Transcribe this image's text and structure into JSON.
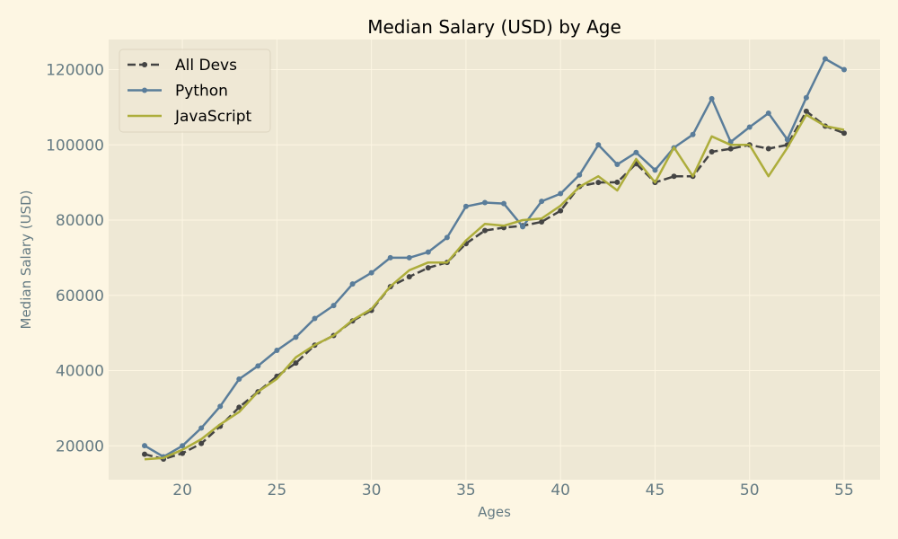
{
  "chart_data": {
    "type": "line",
    "title": "Median Salary (USD) by Age",
    "xlabel": "Ages",
    "ylabel": "Median Salary (USD)",
    "xlim": [
      16.1,
      56.9
    ],
    "ylim": [
      11000,
      128000
    ],
    "xticks": [
      20,
      25,
      30,
      35,
      40,
      45,
      50,
      55
    ],
    "yticks": [
      20000,
      40000,
      60000,
      80000,
      100000,
      120000
    ],
    "grid": true,
    "legend_position": "top-left",
    "background": "#eee8d5",
    "x": [
      18,
      19,
      20,
      21,
      22,
      23,
      24,
      25,
      26,
      27,
      28,
      29,
      30,
      31,
      32,
      33,
      34,
      35,
      36,
      37,
      38,
      39,
      40,
      41,
      42,
      43,
      44,
      45,
      46,
      47,
      48,
      49,
      50,
      51,
      52,
      53,
      54,
      55
    ],
    "series": [
      {
        "name": "All Devs",
        "color": "#444444",
        "style": "dashed",
        "marker": "dot",
        "values": [
          17784,
          16500,
          18012,
          20628,
          25206,
          30252,
          34368,
          38496,
          42000,
          46752,
          49320,
          53200,
          56000,
          62316,
          64928,
          67317,
          68748,
          73752,
          77232,
          78000,
          78508,
          79536,
          82488,
          88935,
          90000,
          90056,
          95000,
          90000,
          91633,
          91660,
          98150,
          98964,
          100000,
          98988,
          100000,
          108923,
          105000,
          103117
        ]
      },
      {
        "name": "Python",
        "color": "#5a7d9a",
        "style": "solid",
        "marker": "dot",
        "values": [
          20046,
          17100,
          20000,
          24744,
          30500,
          37732,
          41247,
          45372,
          48876,
          53850,
          57287,
          63016,
          65998,
          70003,
          70000,
          71496,
          75370,
          83640,
          84666,
          84392,
          78254,
          85000,
          87038,
          91991,
          100000,
          94796,
          97962,
          93302,
          99240,
          102736,
          112285,
          100771,
          104708,
          108423,
          101407,
          112542,
          122870,
          120000
        ]
      },
      {
        "name": "JavaScript",
        "color": "#adad3b",
        "style": "solid",
        "marker": "none",
        "values": [
          16446,
          16791,
          18942,
          21780,
          25704,
          29000,
          34372,
          37810,
          43515,
          46823,
          49293,
          53437,
          56373,
          62375,
          66674,
          68745,
          68746,
          74583,
          79000,
          78508,
          79996,
          80403,
          83820,
          88833,
          91660,
          87892,
          96243,
          90000,
          99313,
          91660,
          102264,
          100000,
          100000,
          91660,
          99240,
          108000,
          105000,
          104000
        ]
      }
    ]
  }
}
